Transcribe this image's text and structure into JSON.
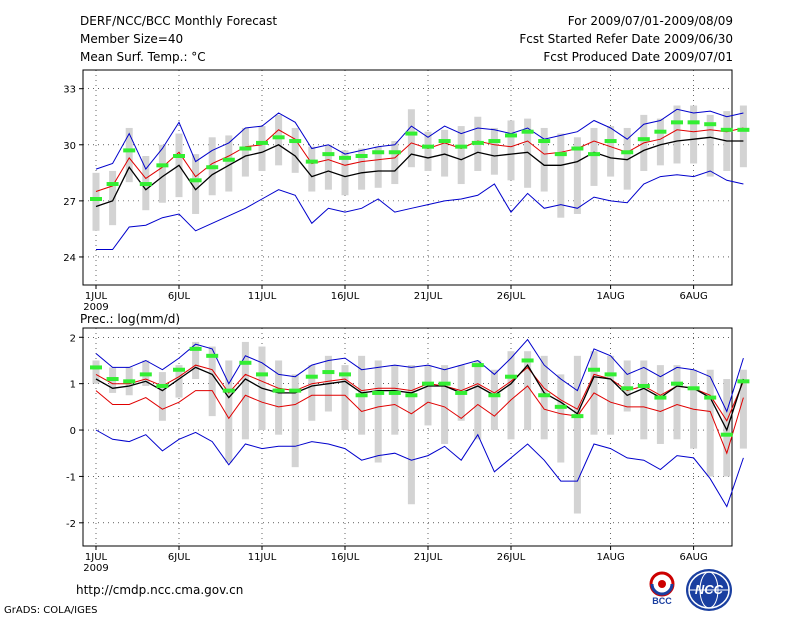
{
  "header": {
    "title": "DERF/NCC/BCC Monthly Forecast",
    "member_size": "Member Size=40",
    "variable": "Mean Surf. Temp.: °C",
    "period": "For 2009/07/01-2009/08/09",
    "started": "Fcst Started Refer Date 2009/06/30",
    "produced": "Fcst Produced Date 2009/07/01"
  },
  "footer": {
    "url": "http://cmdp.ncc.cma.gov.cn",
    "grads": "GrADS: COLA/IGES",
    "logo_left": "BCC",
    "logo_right": "NCC"
  },
  "colors": {
    "median": "#000000",
    "mean": "#e00000",
    "extremes": "#0000cc",
    "spread_bar": "#d3d3d3",
    "observation": "#33ee33",
    "grid": "#000000"
  },
  "chart_data": [
    {
      "type": "line",
      "title": "Mean Surf. Temp.: °C",
      "xlabel": "",
      "ylabel": "",
      "ylim": [
        22.5,
        34
      ],
      "yticks": [
        24,
        27,
        30,
        33
      ],
      "xticklabels": [
        "1JUL",
        "6JUL",
        "11JUL",
        "16JUL",
        "21JUL",
        "26JUL",
        "1AUG",
        "6AUG"
      ],
      "xtick_days": [
        1,
        6,
        11,
        16,
        21,
        26,
        32,
        37
      ],
      "year_label": "2009",
      "days": [
        1,
        2,
        3,
        4,
        5,
        6,
        7,
        8,
        9,
        10,
        11,
        12,
        13,
        14,
        15,
        16,
        17,
        18,
        19,
        20,
        21,
        22,
        23,
        24,
        25,
        26,
        27,
        28,
        29,
        30,
        31,
        32,
        33,
        34,
        35,
        36,
        37,
        38,
        39,
        40
      ],
      "series": [
        {
          "name": "max",
          "values": [
            28.7,
            29.0,
            30.6,
            28.7,
            29.8,
            31.2,
            29.1,
            29.7,
            30.1,
            30.9,
            31.0,
            31.7,
            31.2,
            29.8,
            30.0,
            29.5,
            29.7,
            29.9,
            30.0,
            31.0,
            30.4,
            31.0,
            30.6,
            30.9,
            30.8,
            30.6,
            30.9,
            30.3,
            30.5,
            30.7,
            31.3,
            30.9,
            30.3,
            31.1,
            31.3,
            31.9,
            31.7,
            31.8,
            31.5,
            31.7
          ]
        },
        {
          "name": "mean",
          "values": [
            27.5,
            27.8,
            29.3,
            28.2,
            28.8,
            29.6,
            28.3,
            29.0,
            29.4,
            29.9,
            30.0,
            30.8,
            30.3,
            29.0,
            29.2,
            28.9,
            29.1,
            29.2,
            29.3,
            30.1,
            29.8,
            30.1,
            29.8,
            30.2,
            30.0,
            29.9,
            30.2,
            29.5,
            29.6,
            29.8,
            30.2,
            29.9,
            29.6,
            30.1,
            30.3,
            30.8,
            30.7,
            30.8,
            30.7,
            30.9
          ]
        },
        {
          "name": "median",
          "values": [
            26.7,
            27.0,
            28.8,
            27.6,
            28.3,
            28.9,
            27.6,
            28.4,
            28.9,
            29.4,
            29.6,
            30.0,
            29.4,
            28.3,
            28.6,
            28.3,
            28.5,
            28.6,
            28.6,
            29.5,
            29.3,
            29.5,
            29.2,
            29.6,
            29.4,
            29.5,
            29.6,
            28.9,
            28.9,
            29.1,
            29.6,
            29.3,
            29.2,
            29.7,
            30.0,
            30.2,
            30.3,
            30.4,
            30.2,
            30.2
          ]
        },
        {
          "name": "min",
          "values": [
            24.4,
            24.4,
            25.6,
            25.7,
            26.1,
            26.3,
            25.4,
            25.8,
            26.2,
            26.6,
            27.1,
            27.6,
            27.3,
            25.8,
            26.6,
            26.4,
            26.6,
            27.1,
            26.4,
            26.6,
            26.8,
            27.0,
            27.1,
            27.3,
            27.9,
            26.4,
            27.4,
            26.6,
            26.8,
            26.6,
            27.2,
            27.0,
            26.9,
            27.9,
            28.3,
            28.4,
            28.3,
            28.6,
            28.1,
            27.9
          ]
        },
        {
          "name": "obs",
          "values": [
            27.1,
            27.9,
            29.7,
            27.9,
            28.9,
            29.4,
            28.1,
            28.8,
            29.2,
            29.8,
            30.1,
            30.4,
            30.2,
            29.1,
            29.5,
            29.3,
            29.4,
            29.6,
            29.6,
            30.6,
            29.9,
            30.2,
            29.9,
            30.1,
            30.2,
            30.5,
            30.7,
            30.2,
            29.5,
            29.8,
            29.5,
            30.2,
            29.6,
            30.3,
            30.7,
            31.2,
            31.2,
            31.1,
            30.8,
            30.8
          ]
        }
      ],
      "spread": {
        "low": [
          25.4,
          25.7,
          28.0,
          26.5,
          26.9,
          27.2,
          26.3,
          27.3,
          27.5,
          28.3,
          28.6,
          28.9,
          28.5,
          27.5,
          27.6,
          27.3,
          27.6,
          27.7,
          27.9,
          28.8,
          28.6,
          28.3,
          27.9,
          28.6,
          28.4,
          28.1,
          27.7,
          27.5,
          26.1,
          26.3,
          27.8,
          28.3,
          27.6,
          28.6,
          28.9,
          29.0,
          29.0,
          28.3,
          28.6,
          28.8
        ],
        "high": [
          28.5,
          28.6,
          30.9,
          29.4,
          30.0,
          30.6,
          29.5,
          30.4,
          30.5,
          30.9,
          31.0,
          31.6,
          30.9,
          29.9,
          30.0,
          29.7,
          29.8,
          29.9,
          30.2,
          31.9,
          30.7,
          30.8,
          31.0,
          31.5,
          30.9,
          31.3,
          31.4,
          30.9,
          30.6,
          30.4,
          30.9,
          31.0,
          30.9,
          31.6,
          31.4,
          32.1,
          32.1,
          31.6,
          31.8,
          32.1
        ]
      }
    },
    {
      "type": "line",
      "title": "Prec.: log(mm/d)",
      "xlabel": "",
      "ylabel": "",
      "ylim": [
        -2.5,
        2.2
      ],
      "yticks": [
        -2,
        -1,
        0,
        1,
        2
      ],
      "xticklabels": [
        "1JUL",
        "6JUL",
        "11JUL",
        "16JUL",
        "21JUL",
        "26JUL",
        "1AUG",
        "6AUG"
      ],
      "xtick_days": [
        1,
        6,
        11,
        16,
        21,
        26,
        32,
        37
      ],
      "year_label": "2009",
      "days": [
        1,
        2,
        3,
        4,
        5,
        6,
        7,
        8,
        9,
        10,
        11,
        12,
        13,
        14,
        15,
        16,
        17,
        18,
        19,
        20,
        21,
        22,
        23,
        24,
        25,
        26,
        27,
        28,
        29,
        30,
        31,
        32,
        33,
        34,
        35,
        36,
        37,
        38,
        39,
        40
      ],
      "series": [
        {
          "name": "max",
          "values": [
            1.65,
            1.35,
            1.35,
            1.5,
            1.3,
            1.55,
            1.85,
            1.75,
            1.0,
            1.6,
            1.45,
            1.2,
            1.15,
            1.4,
            1.5,
            1.55,
            1.3,
            1.35,
            1.4,
            1.35,
            1.4,
            1.3,
            1.4,
            1.5,
            1.2,
            1.55,
            1.95,
            1.4,
            1.1,
            0.85,
            1.75,
            1.6,
            1.2,
            1.35,
            1.15,
            1.35,
            1.3,
            1.15,
            0.4,
            1.55
          ]
        },
        {
          "name": "mean",
          "values": [
            1.2,
            1.0,
            1.0,
            1.1,
            0.95,
            1.15,
            1.4,
            1.3,
            0.8,
            1.2,
            1.05,
            0.9,
            0.85,
            1.0,
            1.05,
            1.1,
            0.85,
            0.9,
            0.9,
            0.85,
            1.0,
            0.95,
            0.85,
            1.0,
            0.8,
            1.05,
            1.35,
            0.9,
            0.65,
            0.45,
            1.2,
            1.1,
            0.85,
            0.95,
            0.75,
            0.95,
            0.9,
            0.75,
            0.2,
            1.05
          ]
        },
        {
          "name": "median",
          "values": [
            1.1,
            0.9,
            0.95,
            1.05,
            0.85,
            1.1,
            1.35,
            1.2,
            0.7,
            1.1,
            0.9,
            0.8,
            0.8,
            0.95,
            1.0,
            1.05,
            0.8,
            0.85,
            0.85,
            0.8,
            0.95,
            0.95,
            0.8,
            0.95,
            0.75,
            1.0,
            1.4,
            0.8,
            0.6,
            0.35,
            1.15,
            1.1,
            0.75,
            0.9,
            0.7,
            0.95,
            0.9,
            0.7,
            0.0,
            1.1
          ]
        },
        {
          "name": "mean_low",
          "values": [
            0.85,
            0.55,
            0.55,
            0.7,
            0.45,
            0.6,
            0.85,
            0.85,
            0.25,
            0.75,
            0.6,
            0.5,
            0.55,
            0.75,
            0.75,
            0.75,
            0.4,
            0.5,
            0.55,
            0.35,
            0.6,
            0.5,
            0.25,
            0.55,
            0.3,
            0.65,
            0.95,
            0.45,
            0.35,
            0.3,
            0.8,
            0.6,
            0.5,
            0.5,
            0.4,
            0.55,
            0.45,
            0.4,
            -0.5,
            0.7
          ]
        },
        {
          "name": "min",
          "values": [
            0.0,
            -0.2,
            -0.25,
            -0.1,
            -0.45,
            -0.2,
            -0.05,
            -0.25,
            -0.75,
            -0.3,
            -0.4,
            -0.35,
            -0.35,
            -0.25,
            -0.3,
            -0.4,
            -0.65,
            -0.55,
            -0.5,
            -0.65,
            -0.55,
            -0.35,
            -0.65,
            -0.1,
            -0.9,
            -0.6,
            -0.3,
            -0.65,
            -1.1,
            -1.1,
            -0.3,
            -0.4,
            -0.6,
            -0.65,
            -0.85,
            -0.55,
            -0.6,
            -1.05,
            -1.65,
            -0.6
          ]
        },
        {
          "name": "obs",
          "values": [
            1.35,
            1.1,
            1.05,
            1.2,
            0.95,
            1.3,
            1.75,
            1.6,
            0.85,
            1.45,
            1.2,
            0.85,
            0.85,
            1.15,
            1.25,
            1.2,
            0.75,
            0.8,
            0.8,
            0.75,
            1.0,
            1.0,
            0.8,
            1.4,
            0.75,
            1.15,
            1.5,
            0.75,
            0.5,
            0.3,
            1.3,
            1.2,
            0.9,
            0.95,
            0.7,
            1.0,
            0.9,
            0.7,
            -0.1,
            1.05
          ]
        }
      ],
      "spread": {
        "low": [
          1.0,
          0.8,
          0.75,
          0.95,
          0.2,
          0.7,
          1.1,
          0.3,
          -0.7,
          -0.2,
          0.0,
          -0.1,
          -0.8,
          0.2,
          0.4,
          0.0,
          -0.1,
          -0.7,
          -0.1,
          -1.6,
          0.1,
          -0.3,
          0.2,
          -0.2,
          0.0,
          -0.2,
          0.0,
          -0.2,
          -0.7,
          -1.8,
          -0.1,
          -0.1,
          0.4,
          -0.2,
          -0.3,
          -0.2,
          -0.4,
          -1.0,
          -1.0,
          -0.4
        ],
        "high": [
          1.5,
          1.35,
          1.35,
          1.5,
          1.25,
          1.4,
          1.9,
          1.8,
          1.5,
          1.9,
          1.8,
          1.5,
          1.2,
          1.4,
          1.6,
          1.4,
          1.6,
          1.5,
          1.4,
          1.4,
          1.4,
          1.4,
          1.4,
          1.5,
          1.3,
          1.7,
          1.7,
          1.6,
          1.2,
          1.6,
          1.7,
          1.6,
          1.5,
          1.5,
          1.4,
          1.4,
          1.3,
          1.3,
          1.1,
          1.3
        ]
      }
    }
  ]
}
